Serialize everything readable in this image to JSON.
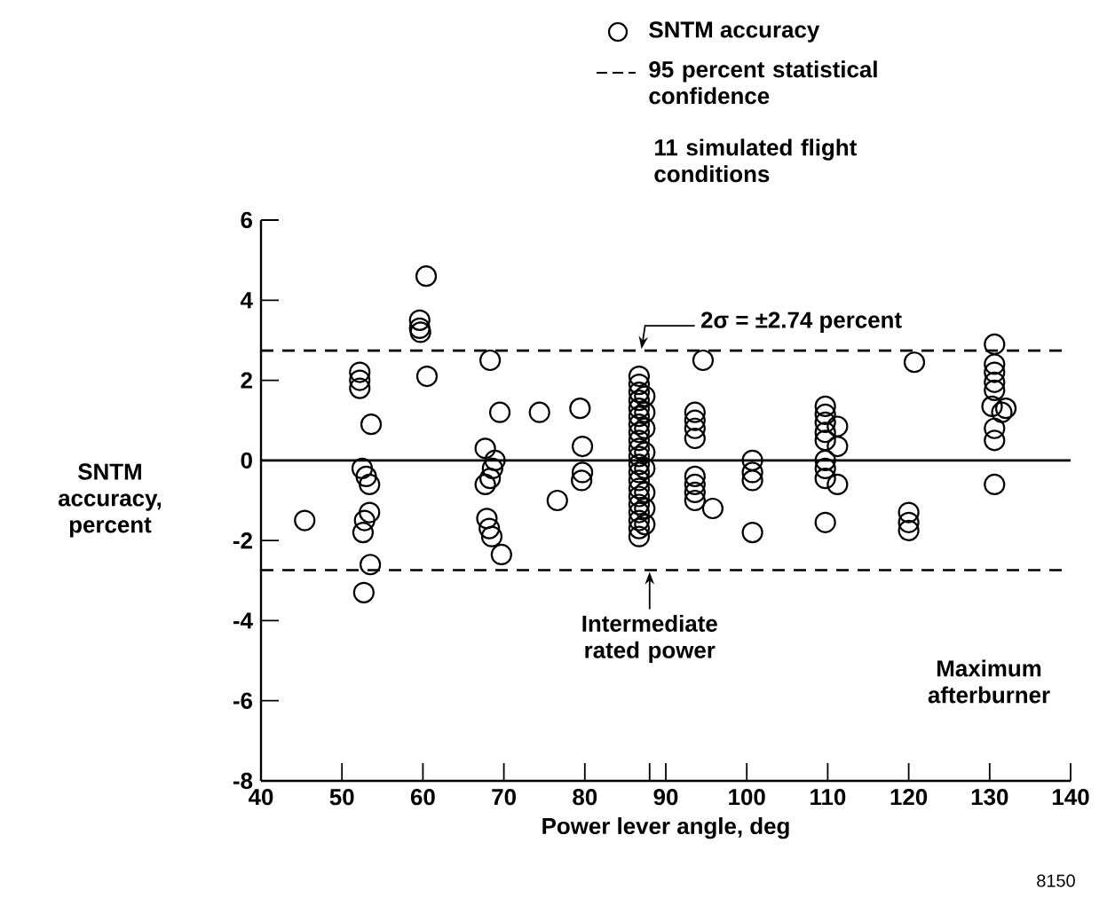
{
  "chart_data": {
    "type": "scatter",
    "xlabel": "Power lever angle, deg",
    "ylabel": "SNTM accuracy, percent",
    "series": [
      {
        "name": "SNTM accuracy",
        "color": "#000000",
        "x": [
          45.4,
          52.2,
          52.2,
          52.2,
          53.6,
          52.5,
          53.0,
          53.4,
          53.4,
          52.8,
          52.6,
          53.5,
          52.7,
          60.4,
          59.6,
          59.6,
          59.7,
          60.5,
          68.3,
          69.5,
          74.4,
          79.4,
          79.7,
          79.7,
          79.6,
          76.6,
          67.7,
          68.9,
          68.6,
          68.3,
          67.7,
          67.9,
          68.2,
          68.5,
          69.7,
          86.7,
          86.7,
          86.7,
          86.7,
          86.7,
          86.7,
          86.7,
          86.7,
          86.7,
          86.7,
          86.7,
          86.7,
          86.7,
          86.7,
          86.7,
          86.7,
          86.7,
          86.7,
          86.7,
          86.7,
          86.7,
          87.4,
          87.4,
          87.4,
          87.4,
          87.4,
          87.4,
          87.4,
          87.4,
          94.6,
          93.6,
          93.6,
          93.6,
          93.6,
          93.6,
          93.6,
          93.6,
          93.6,
          95.8,
          100.7,
          100.7,
          100.7,
          100.7,
          109.7,
          109.7,
          109.7,
          109.7,
          109.7,
          109.7,
          109.7,
          109.7,
          109.7,
          111.2,
          111.2,
          111.2,
          120.7,
          120.0,
          120.0,
          120.0,
          130.6,
          130.6,
          130.6,
          130.6,
          130.6,
          130.3,
          131.5,
          130.6,
          130.6,
          130.6,
          132.0
        ],
        "values": [
          -1.5,
          2.2,
          2.0,
          1.8,
          0.9,
          -0.2,
          -0.4,
          -0.6,
          -1.3,
          -1.5,
          -1.8,
          -2.6,
          -3.3,
          4.6,
          3.5,
          3.3,
          3.2,
          2.1,
          2.5,
          1.2,
          1.2,
          1.3,
          0.35,
          -0.3,
          -0.5,
          -1.0,
          0.3,
          0.0,
          -0.2,
          -0.45,
          -0.6,
          -1.45,
          -1.7,
          -1.9,
          -2.35,
          2.1,
          1.9,
          1.7,
          1.5,
          1.3,
          1.1,
          0.9,
          0.7,
          0.5,
          0.3,
          0.1,
          -0.1,
          -0.3,
          -0.5,
          -0.7,
          -0.9,
          -1.1,
          -1.3,
          -1.5,
          -1.7,
          -1.9,
          1.6,
          1.2,
          0.8,
          0.2,
          -0.2,
          -0.8,
          -1.2,
          -1.6,
          2.5,
          1.2,
          1.0,
          0.8,
          0.55,
          -0.4,
          -0.6,
          -0.8,
          -1.0,
          -1.2,
          0.0,
          -0.3,
          -0.5,
          -1.8,
          1.35,
          1.15,
          0.95,
          0.7,
          0.5,
          0.0,
          -0.2,
          -0.45,
          -1.55,
          0.85,
          0.35,
          -0.6,
          2.45,
          -1.3,
          -1.55,
          -1.75,
          2.9,
          2.4,
          2.2,
          1.95,
          1.75,
          1.35,
          1.2,
          0.8,
          0.5,
          -0.6,
          1.3
        ]
      }
    ],
    "marker": "circle",
    "legend": "top right",
    "xlim": [
      40,
      140
    ],
    "ylim": [
      -8,
      6
    ],
    "xticks": [
      40,
      50,
      60,
      70,
      80,
      {
        "value": 88,
        "label": null
      },
      90,
      100,
      110,
      120,
      130,
      140
    ],
    "yticks": [
      -8,
      -6,
      -4,
      -2,
      0,
      2,
      4,
      6
    ],
    "ref_lines": [
      {
        "axis": "y",
        "value": 0,
        "line_style": "solid"
      },
      {
        "axis": "y",
        "value": 2.74,
        "line_style": "dashed",
        "label": "95 percent statistical confidence"
      },
      {
        "axis": "y",
        "value": -2.74,
        "line_style": "dashed"
      }
    ],
    "annotations": [
      {
        "text": "2σ = ±2.74 percent",
        "x": 87,
        "y": 2.74
      },
      {
        "text": "Intermediate rated power",
        "x": 88,
        "y": -2.74
      },
      "Maximum afterburner",
      "11 simulated flight conditions",
      "8150"
    ]
  }
}
